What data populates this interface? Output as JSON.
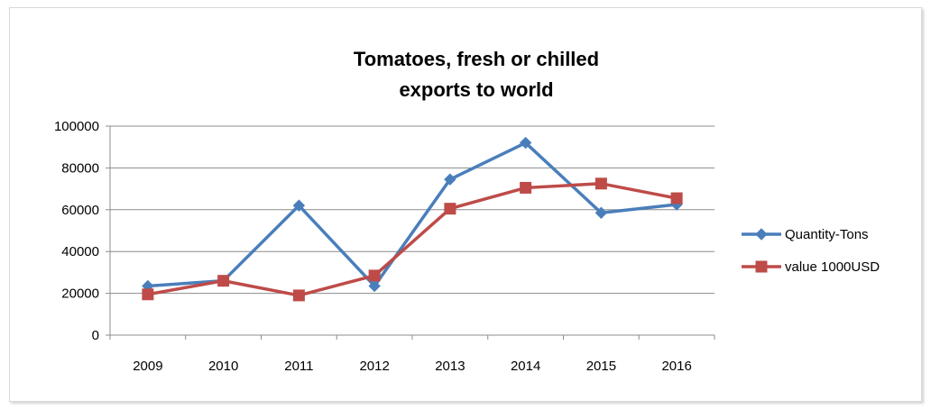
{
  "chart_data": {
    "type": "line",
    "title_lines": [
      "Tomatoes, fresh or chilled",
      "exports to world"
    ],
    "xlabel": "",
    "ylabel": "",
    "categories": [
      "2009",
      "2010",
      "2011",
      "2012",
      "2013",
      "2014",
      "2015",
      "2016"
    ],
    "ylim": [
      0,
      100000
    ],
    "yticks": [
      "0",
      "20000",
      "40000",
      "60000",
      "80000",
      "100000"
    ],
    "grid": true,
    "legend_position": "right",
    "series": [
      {
        "name": "Quantity-Tons",
        "color": "#4a7ebb",
        "marker": "diamond",
        "values": [
          23500,
          26000,
          62000,
          23500,
          74500,
          92000,
          58500,
          62500
        ]
      },
      {
        "name": "value 1000USD",
        "color": "#be4b48",
        "marker": "square",
        "values": [
          19500,
          26000,
          19000,
          28500,
          60500,
          70500,
          72500,
          65500
        ]
      }
    ]
  }
}
